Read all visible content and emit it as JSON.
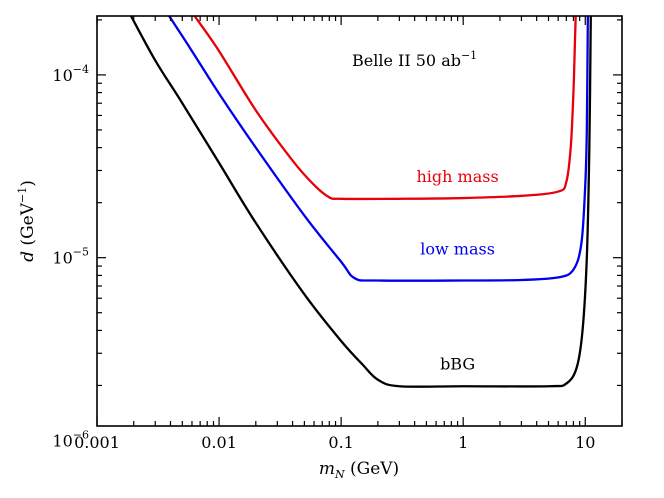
{
  "chart_data": {
    "type": "line",
    "title": "",
    "annotation": {
      "text": "Belle II 50 ab",
      "sup": "−1"
    },
    "xlabel": {
      "var": "m",
      "sub": "N",
      "unit": " (GeV)"
    },
    "ylabel": {
      "var": "d",
      "unit_pre": " (GeV",
      "sup": "−1",
      "unit_post": ")"
    },
    "x_scale": "log",
    "y_scale": "log",
    "xlim": [
      0.001,
      20
    ],
    "ylim": [
      1.2e-06,
      0.00021
    ],
    "grid": false,
    "legend": "none",
    "x_ticks": [
      {
        "value": 0.001,
        "label": "0.001"
      },
      {
        "value": 0.01,
        "label": "0.01"
      },
      {
        "value": 0.1,
        "label": "0.1"
      },
      {
        "value": 1,
        "label": "1"
      },
      {
        "value": 10,
        "label": "10"
      }
    ],
    "y_ticks": [
      {
        "value": 1e-06,
        "base": "10",
        "exp": "−6"
      },
      {
        "value": 1e-05,
        "base": "10",
        "exp": "−5"
      },
      {
        "value": 0.0001,
        "base": "10",
        "exp": "−4"
      }
    ],
    "series": [
      {
        "name": "high mass",
        "color": "#e8000b",
        "label_at": {
          "x": 0.9,
          "y": 2.6e-05
        },
        "points": [
          [
            0.0063,
            0.00021
          ],
          [
            0.01,
            0.000135
          ],
          [
            0.02,
            6.4e-05
          ],
          [
            0.04,
            3.4e-05
          ],
          [
            0.06,
            2.5e-05
          ],
          [
            0.08,
            2.14e-05
          ],
          [
            0.1,
            2.1e-05
          ],
          [
            0.3,
            2.1e-05
          ],
          [
            1,
            2.12e-05
          ],
          [
            3,
            2.18e-05
          ],
          [
            6,
            2.3e-05
          ],
          [
            7,
            2.6e-05
          ],
          [
            7.6,
            4e-05
          ],
          [
            8,
            8e-05
          ],
          [
            8.25,
            0.00016
          ],
          [
            8.35,
            0.00021
          ]
        ]
      },
      {
        "name": "low mass",
        "color": "#0000ee",
        "label_at": {
          "x": 0.9,
          "y": 1.04e-05
        },
        "points": [
          [
            0.0039,
            0.00021
          ],
          [
            0.006,
            0.000135
          ],
          [
            0.01,
            7.9e-05
          ],
          [
            0.02,
            4e-05
          ],
          [
            0.05,
            1.7e-05
          ],
          [
            0.1,
            9.5e-06
          ],
          [
            0.13,
            7.7e-06
          ],
          [
            0.2,
            7.5e-06
          ],
          [
            1,
            7.5e-06
          ],
          [
            3,
            7.55e-06
          ],
          [
            6,
            7.8e-06
          ],
          [
            8,
            8.6e-06
          ],
          [
            9.3,
            1.2e-05
          ],
          [
            10,
            2.5e-05
          ],
          [
            10.3,
            5e-05
          ],
          [
            10.5,
            0.00021
          ]
        ]
      },
      {
        "name": "bBG",
        "color": "#000000",
        "label_at": {
          "x": 0.9,
          "y": 2.45e-06
        },
        "points": [
          [
            0.0019,
            0.00021
          ],
          [
            0.003,
            0.00012
          ],
          [
            0.005,
            7e-05
          ],
          [
            0.01,
            3.3e-05
          ],
          [
            0.02,
            1.55e-05
          ],
          [
            0.05,
            6.3e-06
          ],
          [
            0.1,
            3.5e-06
          ],
          [
            0.15,
            2.6e-06
          ],
          [
            0.2,
            2.15e-06
          ],
          [
            0.3,
            1.98e-06
          ],
          [
            1,
            1.98e-06
          ],
          [
            5,
            1.98e-06
          ],
          [
            7,
            2.05e-06
          ],
          [
            8.5,
            2.5e-06
          ],
          [
            9.5,
            4e-06
          ],
          [
            10.3,
            1e-05
          ],
          [
            10.8,
            4e-05
          ],
          [
            11.1,
            0.00021
          ]
        ]
      }
    ]
  }
}
